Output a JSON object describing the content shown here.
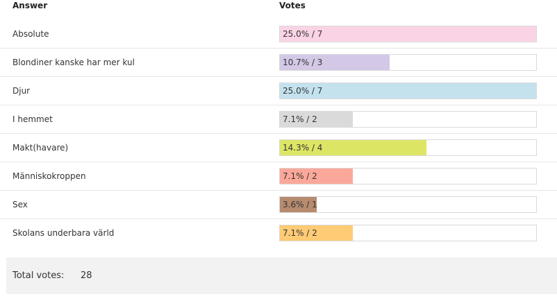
{
  "header": {
    "answer": "Answer",
    "votes": "Votes"
  },
  "rows": [
    {
      "answer": "Absolute",
      "label": "25.0% / 7",
      "fraction": 1.0,
      "color": "#fad3e5"
    },
    {
      "answer": "Blondiner kanske har mer kul",
      "label": "10.7% / 3",
      "fraction": 0.4286,
      "color": "#d3c8e6"
    },
    {
      "answer": "Djur",
      "label": "25.0% / 7",
      "fraction": 1.0,
      "color": "#c3e2ee"
    },
    {
      "answer": "I hemmet",
      "label": "7.1% / 2",
      "fraction": 0.2857,
      "color": "#dadada"
    },
    {
      "answer": "Makt(havare)",
      "label": "14.3% / 4",
      "fraction": 0.5714,
      "color": "#dde664"
    },
    {
      "answer": "Människokroppen",
      "label": "7.1% / 2",
      "fraction": 0.2857,
      "color": "#fba89a"
    },
    {
      "answer": "Sex",
      "label": "3.6% / 1",
      "fraction": 0.1429,
      "color": "#b78b6e"
    },
    {
      "answer": "Skolans underbara värld",
      "label": "7.1% / 2",
      "fraction": 0.2857,
      "color": "#ffcb75"
    }
  ],
  "footer": {
    "total_label": "Total votes:",
    "total_value": "28"
  }
}
